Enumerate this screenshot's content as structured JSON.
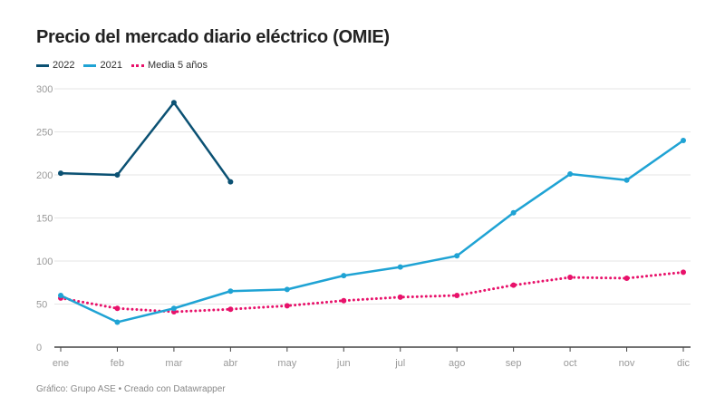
{
  "chart_data": {
    "type": "line",
    "title": "Precio del mercado diario eléctrico (OMIE)",
    "categories": [
      "ene",
      "feb",
      "mar",
      "abr",
      "may",
      "jun",
      "jul",
      "ago",
      "sep",
      "oct",
      "nov",
      "dic"
    ],
    "ylim": [
      0,
      300
    ],
    "yticks": [
      0,
      50,
      100,
      150,
      200,
      250,
      300
    ],
    "grid": true,
    "legend_position": "top-left",
    "series": [
      {
        "name": "2022",
        "color": "#0b5173",
        "style": "solid",
        "values": [
          202,
          200,
          284,
          192,
          null,
          null,
          null,
          null,
          null,
          null,
          null,
          null
        ]
      },
      {
        "name": "2021",
        "color": "#1fa3d4",
        "style": "solid",
        "values": [
          60,
          29,
          45,
          65,
          67,
          83,
          93,
          106,
          156,
          201,
          194,
          240
        ]
      },
      {
        "name": "Media 5 años",
        "color": "#e8116a",
        "style": "dotted",
        "values": [
          57,
          45,
          41,
          44,
          48,
          54,
          58,
          60,
          72,
          81,
          80,
          87
        ]
      }
    ]
  },
  "footer": "Gráfico: Grupo ASE • Creado con Datawrapper"
}
